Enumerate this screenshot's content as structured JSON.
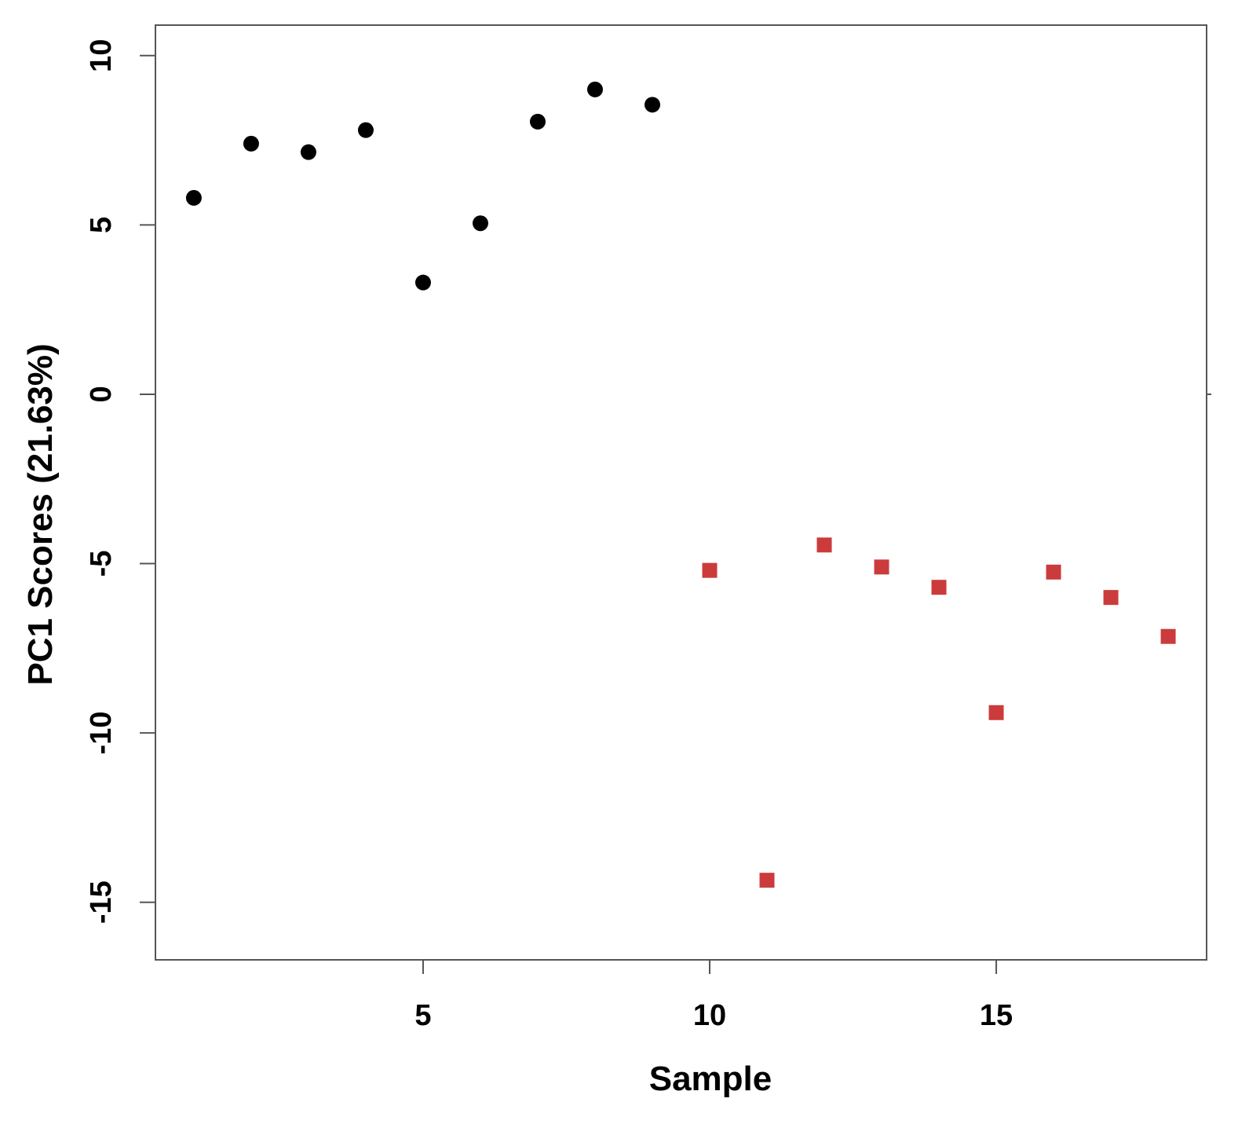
{
  "chart_data": {
    "type": "scatter",
    "title": "",
    "xlabel": "Sample",
    "ylabel": "PC1 Scores (21.63%)",
    "xlim": [
      0.33,
      18.67
    ],
    "ylim": [
      -16.7,
      10.9
    ],
    "x_ticks": [
      5,
      10,
      15
    ],
    "y_ticks": [
      10,
      5,
      0,
      -5,
      -10,
      -15
    ],
    "grid": false,
    "legend": "none",
    "series": [
      {
        "marker": "circle",
        "color": "#000000",
        "x": [
          1,
          2,
          3,
          4,
          5,
          6,
          7,
          8,
          9
        ],
        "y": [
          5.8,
          7.4,
          7.15,
          7.8,
          3.3,
          5.05,
          8.05,
          9.0,
          8.55
        ]
      },
      {
        "marker": "square",
        "color": "#CC3B3B",
        "x": [
          10,
          11,
          12,
          13,
          14,
          15,
          16,
          17,
          18
        ],
        "y": [
          -5.2,
          -14.35,
          -4.45,
          -5.1,
          -5.7,
          -9.4,
          -5.25,
          -6.0,
          -7.15
        ]
      }
    ]
  }
}
